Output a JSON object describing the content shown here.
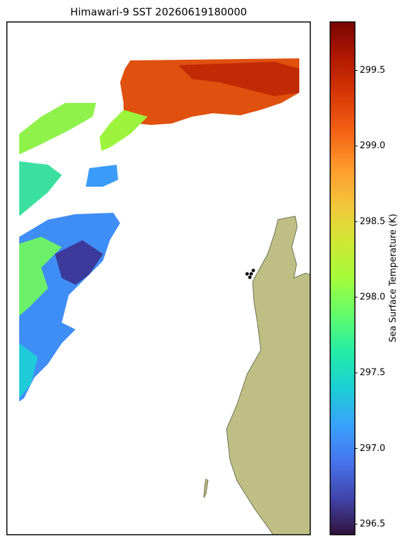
{
  "chart_data": {
    "type": "colorbar-map",
    "title": "Himawari-9 SST 20260619180000",
    "ylabel": "Sea Surface Temperature (K)",
    "ylim": [
      296.43,
      299.82
    ],
    "yticks": [
      296.5,
      {
        "value": 297,
        "label": "297.0"
      },
      297.5,
      {
        "value": 298,
        "label": "298.0"
      },
      298.5,
      {
        "value": 299,
        "label": "299.0"
      },
      299.5
    ],
    "colormap": [
      "#30123b",
      "#4145ab",
      "#4675ed",
      "#39a2fc",
      "#1bcfd4",
      "#24eca6",
      "#61fc6c",
      "#a4fc3b",
      "#d1e834",
      "#f3c63a",
      "#fe9b2d",
      "#f36315",
      "#d93806",
      "#b11901",
      "#7a0403"
    ]
  }
}
